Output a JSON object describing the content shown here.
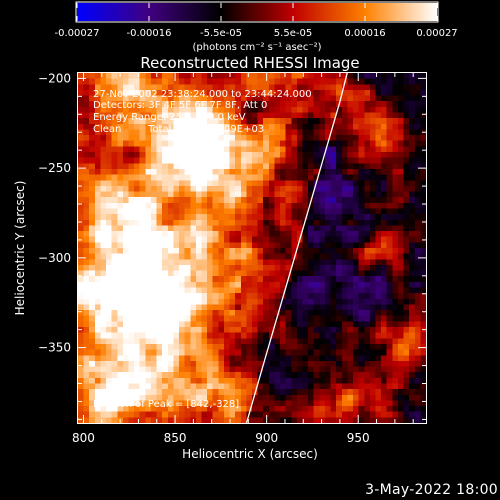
{
  "chart_data": {
    "type": "heatmap",
    "title": "Reconstructed RHESSI Image",
    "xlabel": "Heliocentric X (arcsec)",
    "ylabel": "Heliocentric Y (arcsec)",
    "xlim": [
      797,
      987
    ],
    "ylim": [
      -392,
      -197
    ],
    "x_ticks": [
      800,
      850,
      900,
      950
    ],
    "y_ticks": [
      -200,
      -250,
      -300,
      -350
    ],
    "colorbar": {
      "min": -0.00027,
      "max": 0.00027,
      "ticks": [
        "-0.00027",
        "-0.00016",
        "-5.5e-05",
        "5.5e-05",
        "0.00016",
        "0.00027"
      ],
      "unit_label": "(photons cm⁻² s⁻¹ asec⁻²)",
      "colors": [
        "#0000ff",
        "#400080",
        "#000000",
        "#c00000",
        "#ff8000",
        "#ffffff"
      ]
    },
    "annotations": {
      "time_range": "27-Nov-2002 23:38:24.000 to 23:44:24.000",
      "detectors": "Detectors: 3F 4F 5F 6F 7F 8F, Att 0",
      "energy": "Energy Range: 25.0 - 50.0 keV",
      "method": "Clean",
      "counts": "Total counts: 5.09E+03",
      "peak": "Position of Peak = [842,-328]"
    },
    "peak_position": [
      842,
      -328
    ],
    "limb_curve": [
      [
        889,
        -392
      ],
      [
        900,
        -353
      ],
      [
        910,
        -318
      ],
      [
        920,
        -283
      ],
      [
        930,
        -248
      ],
      [
        940,
        -213
      ],
      [
        944,
        -197
      ]
    ],
    "hot_regions": [
      {
        "x": 842,
        "y": -328,
        "r": 12,
        "v": 0.00027
      },
      {
        "x": 826,
        "y": -318,
        "r": 18,
        "v": 0.0002
      },
      {
        "x": 830,
        "y": -290,
        "r": 16,
        "v": 0.00016
      },
      {
        "x": 813,
        "y": -270,
        "r": 14,
        "v": 0.00014
      },
      {
        "x": 822,
        "y": -358,
        "r": 16,
        "v": 0.00016
      },
      {
        "x": 812,
        "y": -385,
        "r": 10,
        "v": 0.00018
      },
      {
        "x": 855,
        "y": -250,
        "r": 14,
        "v": 0.00018
      },
      {
        "x": 850,
        "y": -225,
        "r": 12,
        "v": 0.00016
      },
      {
        "x": 870,
        "y": -232,
        "r": 12,
        "v": 0.00016
      },
      {
        "x": 828,
        "y": -208,
        "r": 12,
        "v": 0.00014
      },
      {
        "x": 885,
        "y": -255,
        "r": 12,
        "v": 0.00014
      },
      {
        "x": 905,
        "y": -232,
        "r": 10,
        "v": 0.00012
      },
      {
        "x": 878,
        "y": -380,
        "r": 12,
        "v": 0.00014
      },
      {
        "x": 845,
        "y": -370,
        "r": 14,
        "v": 0.00014
      },
      {
        "x": 800,
        "y": -320,
        "r": 10,
        "v": 0.00012
      },
      {
        "x": 948,
        "y": -220,
        "r": 12,
        "v": 0.00014
      },
      {
        "x": 965,
        "y": -235,
        "r": 10,
        "v": 0.0001
      },
      {
        "x": 962,
        "y": -296,
        "r": 10,
        "v": 0.00012
      },
      {
        "x": 975,
        "y": -345,
        "r": 12,
        "v": 0.00014
      },
      {
        "x": 958,
        "y": -375,
        "r": 12,
        "v": 0.00014
      },
      {
        "x": 935,
        "y": -388,
        "r": 10,
        "v": 0.00012
      },
      {
        "x": 918,
        "y": -345,
        "r": 10,
        "v": 6e-05
      },
      {
        "x": 900,
        "y": -310,
        "r": 12,
        "v": 6e-05
      },
      {
        "x": 875,
        "y": -315,
        "r": 12,
        "v": 8e-05
      },
      {
        "x": 862,
        "y": -290,
        "r": 12,
        "v": 0.0001
      }
    ],
    "cold_regions": [
      {
        "x": 928,
        "y": -240,
        "r": 9,
        "v": -0.00014
      },
      {
        "x": 895,
        "y": -218,
        "r": 7,
        "v": -0.0001
      },
      {
        "x": 935,
        "y": -275,
        "r": 14,
        "v": -8e-05
      },
      {
        "x": 925,
        "y": -320,
        "r": 14,
        "v": -8e-05
      },
      {
        "x": 955,
        "y": -320,
        "r": 12,
        "v": -7e-05
      },
      {
        "x": 900,
        "y": -360,
        "r": 10,
        "v": -6e-05
      },
      {
        "x": 975,
        "y": -205,
        "r": 10,
        "v": -5e-05
      }
    ]
  },
  "footer": {
    "date": "3-May-2022 18:00"
  }
}
